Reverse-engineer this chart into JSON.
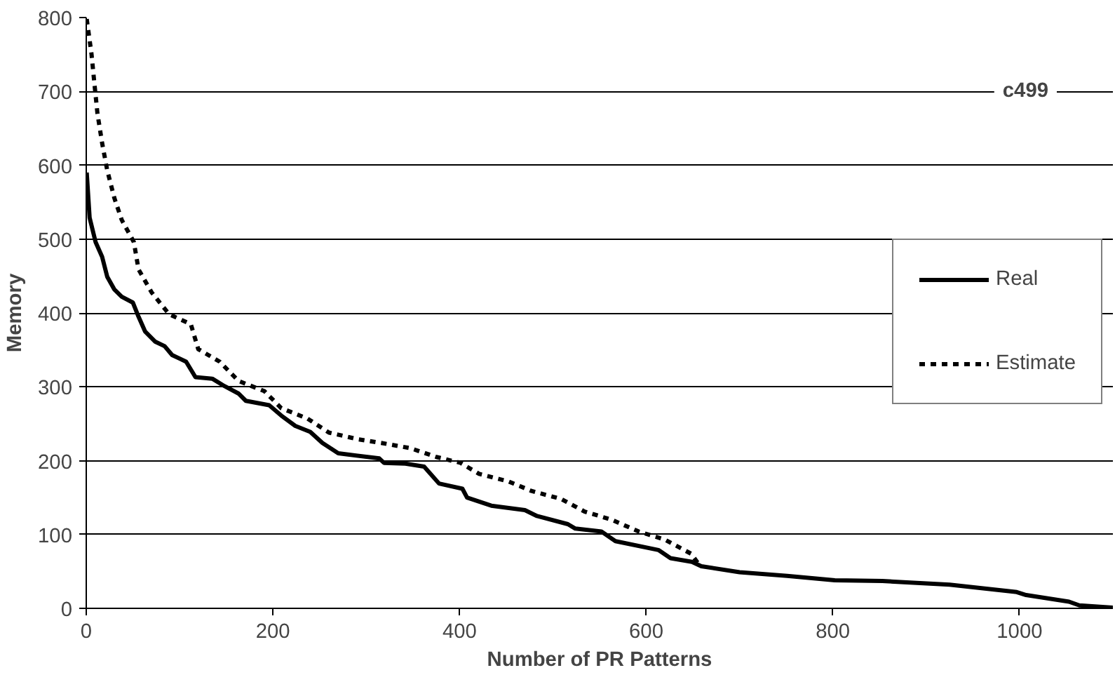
{
  "chart_data": {
    "type": "line",
    "xlabel": "Number of PR Patterns",
    "ylabel": "Memory",
    "annotations": [
      "c499"
    ],
    "xlim": [
      0,
      1100
    ],
    "ylim": [
      0,
      800
    ],
    "xticks": [
      0,
      200,
      400,
      600,
      800,
      1000
    ],
    "yticks": [
      0,
      100,
      200,
      300,
      400,
      500,
      600,
      700,
      800
    ],
    "grid": "y",
    "legend": "right",
    "series": [
      {
        "name": "Real",
        "color": "#000000",
        "line_style": "solid",
        "x": [
          0.5,
          3.6,
          10,
          17,
          22.5,
          30,
          38,
          50,
          56,
          63,
          74,
          84,
          92,
          107,
          117,
          135,
          148,
          163,
          171,
          196,
          209,
          224,
          240,
          253,
          270,
          314,
          319,
          342,
          362,
          378,
          403,
          408,
          434,
          470,
          483,
          516,
          524,
          552,
          567,
          613,
          626,
          649,
          659,
          700,
          751,
          802,
          853,
          925,
          997,
          1007,
          1053,
          1064,
          1100
        ],
        "values": [
          590,
          529,
          496,
          476,
          449,
          432,
          422,
          414,
          395,
          375,
          361,
          355,
          343,
          334,
          313,
          311,
          301,
          291,
          281,
          275,
          261,
          247,
          239,
          224,
          210,
          203,
          197,
          196,
          192,
          169,
          162,
          150,
          139,
          133,
          125,
          114,
          108,
          104,
          91,
          79,
          68,
          63,
          57,
          49,
          44,
          38,
          37,
          32,
          22,
          18,
          9,
          4,
          1
        ]
      },
      {
        "name": "Estimate",
        "color": "#000000",
        "line_style": "dashed",
        "x": [
          0.5,
          5.6,
          8.7,
          12,
          17,
          22.5,
          30,
          38,
          51,
          56,
          70,
          89,
          112,
          120,
          143,
          163,
          191,
          209,
          237,
          260,
          291,
          316,
          347,
          375,
          401,
          421,
          452,
          477,
          509,
          534,
          563,
          592,
          620,
          648,
          655
        ],
        "values": [
          798,
          751,
          711,
          670,
          630,
          593,
          556,
          526,
          496,
          459,
          428,
          398,
          385,
          351,
          334,
          308,
          294,
          271,
          257,
          238,
          229,
          224,
          217,
          205,
          197,
          182,
          172,
          159,
          148,
          131,
          120,
          104,
          93,
          74,
          62
        ]
      }
    ]
  }
}
